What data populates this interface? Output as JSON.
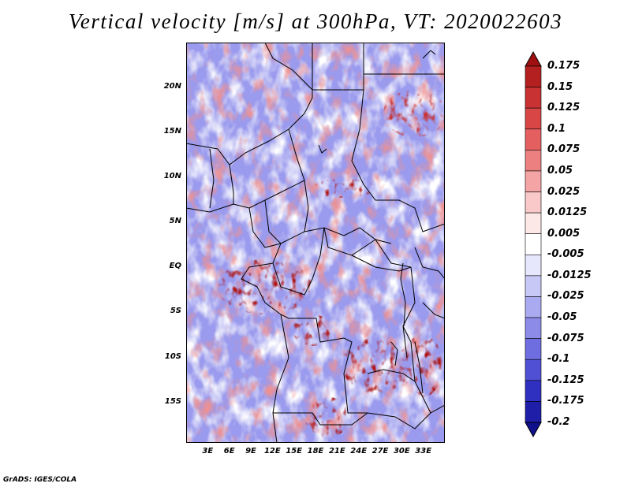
{
  "title": "Vertical velocity [m/s] at 300hPa, VT: 2020022603",
  "footer": "GrADS: IGES/COLA",
  "map": {
    "variable": "Vertical velocity",
    "units": "m/s",
    "level": "300hPa",
    "valid_time": "2020022603",
    "region": "Central Africa",
    "lon_range": [
      0,
      36
    ],
    "lat_range": [
      -19.5,
      25
    ]
  },
  "y_axis": {
    "labels": [
      "20N",
      "15N",
      "10N",
      "5N",
      "EQ",
      "5S",
      "10S",
      "15S"
    ],
    "values": [
      20,
      15,
      10,
      5,
      0,
      -5,
      -10,
      -15
    ]
  },
  "x_axis": {
    "labels": [
      "3E",
      "6E",
      "9E",
      "12E",
      "15E",
      "18E",
      "21E",
      "24E",
      "27E",
      "30E",
      "33E"
    ],
    "values": [
      3,
      6,
      9,
      12,
      15,
      18,
      21,
      24,
      27,
      30,
      33
    ]
  },
  "colorbar": {
    "labels": [
      "0.175",
      "0.15",
      "0.125",
      "0.1",
      "0.075",
      "0.05",
      "0.025",
      "0.0125",
      "0.005",
      "-0.005",
      "-0.0125",
      "-0.025",
      "-0.05",
      "-0.075",
      "-0.1",
      "-0.125",
      "-0.175",
      "-0.2"
    ],
    "colors": [
      "#a01010",
      "#b42020",
      "#c83232",
      "#d84646",
      "#e46060",
      "#ec8080",
      "#f4a4a4",
      "#f9c8c8",
      "#fde8e8",
      "#ffffff",
      "#e6e6fc",
      "#c8c8f6",
      "#aaaaf0",
      "#8c8ce8",
      "#6e6ee0",
      "#5050d4",
      "#3030c0",
      "#1e1ea8",
      "#10108c"
    ]
  },
  "colors": {
    "positive": "#c83232",
    "negative": "#5050d4",
    "border": "#000000"
  }
}
